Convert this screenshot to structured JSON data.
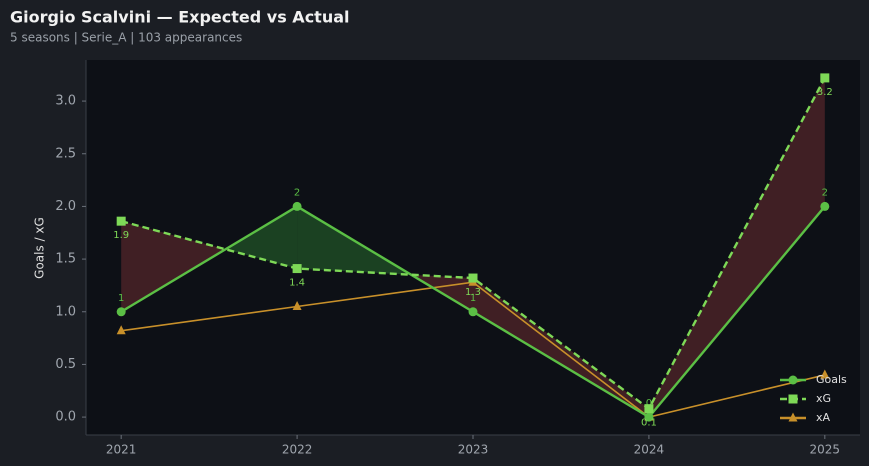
{
  "chart_data": {
    "type": "line",
    "title": "Giorgio Scalvini — Expected vs Actual",
    "subtitle": "5 seasons | Serie_A | 103 appearances",
    "y_label": "Goals / xG",
    "x": [
      2021,
      2022,
      2023,
      2024,
      2025
    ],
    "xlim": [
      2020.8,
      2025.2
    ],
    "xticks": [
      2021,
      2022,
      2023,
      2024,
      2025
    ],
    "ylim": [
      -0.17,
      3.39
    ],
    "yticks": [
      {
        "value": 0,
        "label": "0.0"
      },
      0.5,
      {
        "value": 1,
        "label": "1.0"
      },
      1.5,
      {
        "value": 2,
        "label": "2.0"
      },
      2.5,
      {
        "value": 3,
        "label": "3.0"
      }
    ],
    "legend": "lower right",
    "fill_over_color": "#1f4a25",
    "fill_under_color": "#4a2227",
    "series": [
      {
        "name": "Goals",
        "color": "#5bbf45",
        "marker": "circle",
        "dash": false,
        "values": [
          1,
          2,
          1,
          0,
          2
        ],
        "value_labels": [
          "1",
          "2",
          "1",
          "0",
          "2"
        ],
        "label_side": "above"
      },
      {
        "name": "xG",
        "color": "#7ed957",
        "marker": "square",
        "dash": true,
        "values": [
          1.86,
          1.41,
          1.32,
          0.08,
          3.22
        ],
        "value_labels": [
          "1.9",
          "1.4",
          "1.3",
          "0.1",
          "3.2"
        ],
        "label_side": "below"
      },
      {
        "name": "xA",
        "color": "#c8902a",
        "marker": "triangle",
        "dash": false,
        "values": [
          0.82,
          1.05,
          1.28,
          0.0,
          0.4
        ]
      }
    ]
  }
}
